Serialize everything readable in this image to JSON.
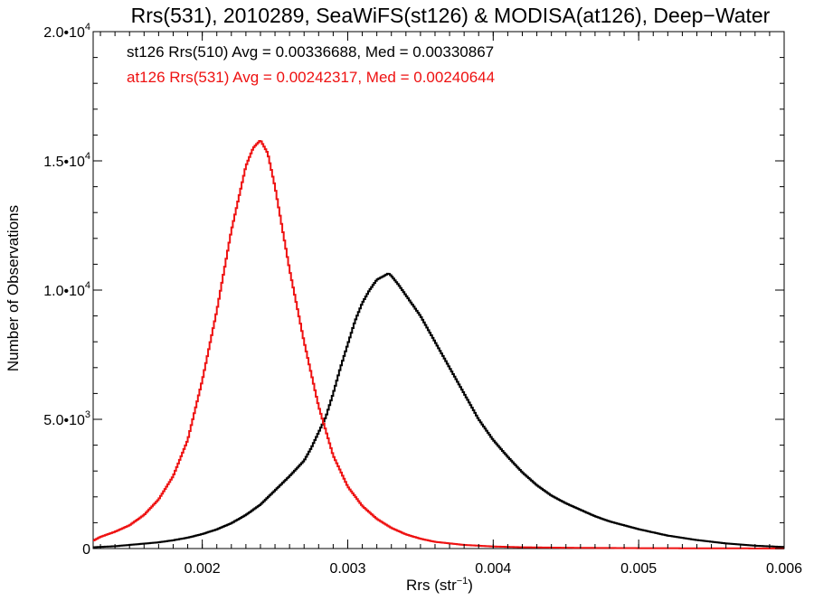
{
  "chart_data": {
    "type": "histogram",
    "title": "Rrs(531), 2010289, SeaWiFS(st126) & MODISA(at126), Deep−Water",
    "xlabel": "Rrs (str",
    "xlabel_sup": "−1",
    "xlabel_close": ")",
    "ylabel": "Number of Observations",
    "xlim": [
      0.00125,
      0.006
    ],
    "ylim": [
      0,
      20000
    ],
    "x_ticks": [
      {
        "value": 0.002,
        "label": "0.002"
      },
      {
        "value": 0.003,
        "label": "0.003"
      },
      {
        "value": 0.004,
        "label": "0.004"
      },
      {
        "value": 0.005,
        "label": "0.005"
      },
      {
        "value": 0.006,
        "label": "0.006"
      }
    ],
    "y_ticks": [
      {
        "value": 0,
        "mant": "0",
        "exp": ""
      },
      {
        "value": 5000,
        "mant": "5.0•10",
        "exp": "3"
      },
      {
        "value": 10000,
        "mant": "1.0•10",
        "exp": "4"
      },
      {
        "value": 15000,
        "mant": "1.5•10",
        "exp": "4"
      },
      {
        "value": 20000,
        "mant": "2.0•10",
        "exp": "4"
      }
    ],
    "annotations": [
      {
        "text": "st126 Rrs(510) Avg = 0.00336688, Med = 0.00330867",
        "color": "#000000"
      },
      {
        "text": "at126 Rrs(531) Avg = 0.00242317, Med = 0.00240644",
        "color": "#ee1111"
      }
    ],
    "series": [
      {
        "color": "#000000",
        "x": [
          0.00125,
          0.0014,
          0.0015,
          0.0016,
          0.0017,
          0.0018,
          0.0019,
          0.002,
          0.0021,
          0.0022,
          0.0023,
          0.0024,
          0.0025,
          0.0026,
          0.0027,
          0.00275,
          0.0028,
          0.00285,
          0.0029,
          0.00295,
          0.003,
          0.00305,
          0.0031,
          0.00315,
          0.0032,
          0.00325,
          0.00328,
          0.0033,
          0.00335,
          0.0034,
          0.0035,
          0.0036,
          0.0037,
          0.0038,
          0.0039,
          0.004,
          0.0041,
          0.0042,
          0.0043,
          0.0044,
          0.0045,
          0.0046,
          0.0047,
          0.0048,
          0.005,
          0.0052,
          0.0054,
          0.0056,
          0.0058,
          0.006
        ],
        "y": [
          50,
          90,
          140,
          190,
          240,
          320,
          420,
          560,
          740,
          980,
          1300,
          1700,
          2250,
          2800,
          3400,
          3900,
          4500,
          5100,
          6000,
          7000,
          7900,
          8800,
          9500,
          10000,
          10400,
          10550,
          10650,
          10550,
          10200,
          9800,
          9000,
          8000,
          7000,
          6000,
          5000,
          4200,
          3550,
          2950,
          2450,
          2050,
          1750,
          1500,
          1250,
          1050,
          750,
          500,
          330,
          200,
          110,
          60
        ]
      },
      {
        "color": "#ee1111",
        "x": [
          0.00125,
          0.0013,
          0.0014,
          0.0015,
          0.0016,
          0.0017,
          0.0018,
          0.0019,
          0.002,
          0.0021,
          0.0022,
          0.0023,
          0.00235,
          0.0024,
          0.00245,
          0.0025,
          0.0026,
          0.0027,
          0.0028,
          0.0029,
          0.003,
          0.0031,
          0.0032,
          0.0033,
          0.0034,
          0.0035,
          0.0036,
          0.0038,
          0.004,
          0.0042,
          0.0045,
          0.005,
          0.0055,
          0.006
        ],
        "y": [
          300,
          450,
          650,
          900,
          1300,
          1900,
          2800,
          4200,
          6500,
          9200,
          12300,
          14800,
          15500,
          15800,
          15300,
          14000,
          10800,
          8000,
          5500,
          3600,
          2400,
          1650,
          1150,
          800,
          550,
          380,
          260,
          140,
          80,
          50,
          30,
          15,
          8,
          5
        ]
      }
    ]
  }
}
